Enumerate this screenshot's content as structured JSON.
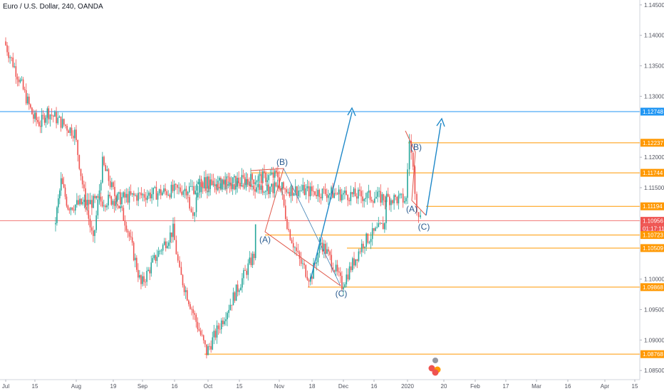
{
  "symbol": {
    "title": "Euro / U.S. Dollar, 240, OANDA"
  },
  "chart_data": {
    "type": "line",
    "subtype": "candlestick-with-drawings",
    "ylim": [
      1.0835,
      1.1458
    ],
    "y_scale": "linear",
    "grid": false,
    "legend": "none",
    "x_ticks": [
      "Jul",
      "15",
      "Aug",
      "19",
      "Sep",
      "16",
      "Oct",
      "15",
      "Nov",
      "18",
      "Dec",
      "16",
      "2020",
      "20",
      "Feb",
      "17",
      "Mar",
      "16",
      "Apr",
      "15"
    ],
    "y_ticks": [
      {
        "label": "1.14500",
        "value": 1.145
      },
      {
        "label": "1.14000",
        "value": 1.14
      },
      {
        "label": "1.13500",
        "value": 1.135
      },
      {
        "label": "1.13000",
        "value": 1.13
      },
      {
        "label": "1.12000",
        "value": 1.12
      },
      {
        "label": "1.11500",
        "value": 1.115
      },
      {
        "label": "1.10000",
        "value": 1.1
      },
      {
        "label": "1.09500",
        "value": 1.095
      },
      {
        "label": "1.09000",
        "value": 1.09
      },
      {
        "label": "1.08500",
        "value": 1.085
      }
    ],
    "price_path": [
      [
        "Jul",
        1.139
      ],
      [
        "Jul",
        1.133
      ],
      [
        "15",
        1.1265
      ],
      [
        "15",
        1.1255
      ],
      [
        "15",
        1.1275
      ],
      [
        "Aug",
        1.124
      ],
      [
        "Aug",
        1.114
      ],
      [
        "Aug",
        1.106
      ],
      [
        "Aug",
        1.119
      ],
      [
        "19",
        1.115
      ],
      [
        "19",
        1.109
      ],
      [
        "Sep",
        1.099
      ],
      [
        "Sep",
        1.104
      ],
      [
        "16",
        1.108
      ],
      [
        "16",
        1.101
      ],
      [
        "Oct",
        1.088
      ],
      [
        "Oct",
        1.096
      ],
      [
        "Oct",
        1.104
      ],
      [
        "15",
        1.108
      ],
      [
        "15",
        1.116
      ],
      [
        "15",
        1.112
      ],
      [
        "Nov",
        1.117
      ],
      [
        "Nov",
        1.108
      ],
      [
        "Nov",
        1.103
      ],
      [
        "18",
        1.1
      ],
      [
        "18",
        1.106
      ],
      [
        "18",
        1.103
      ],
      [
        "Dec",
        1.099
      ],
      [
        "Dec",
        1.106
      ],
      [
        "Dec",
        1.109
      ],
      [
        "16",
        1.114
      ],
      [
        "16",
        1.11
      ],
      [
        "16",
        1.116
      ],
      [
        "2020",
        1.113
      ],
      [
        "2020",
        1.123
      ],
      [
        "2020",
        1.118
      ],
      [
        "2020",
        1.112
      ],
      [
        "2020",
        1.11
      ]
    ],
    "levels": [
      {
        "label": "1.12748",
        "value": 1.12748,
        "color": "#2196f3"
      },
      {
        "label": "1.12237",
        "value": 1.12237,
        "color": "#ff9800"
      },
      {
        "label": "1.11744",
        "value": 1.11744,
        "color": "#ff9800"
      },
      {
        "label": "1.11194",
        "value": 1.11194,
        "color": "#ff9800"
      },
      {
        "label": "1.10956",
        "value": 1.10956,
        "color": "#ef5350"
      },
      {
        "label": "01:17:11",
        "value": 1.10956,
        "color": "#ef5350"
      },
      {
        "label": "1.10723",
        "value": 1.10723,
        "color": "#ff9800"
      },
      {
        "label": "1.10509",
        "value": 1.10509,
        "color": "#ff9800"
      },
      {
        "label": "1.09868",
        "value": 1.09868,
        "color": "#ff9800"
      },
      {
        "label": "1.08768",
        "value": 1.08768,
        "color": "#ff9800"
      }
    ],
    "annotations": [
      {
        "text": "(B)"
      },
      {
        "text": "(A)"
      },
      {
        "text": "(C)"
      },
      {
        "text": "(B)"
      },
      {
        "text": "(A)"
      },
      {
        "text": "(C)"
      }
    ],
    "colors": {
      "up": "#26a69a",
      "down": "#ef5350",
      "level": "#ff9800",
      "blue_level": "#2196f3",
      "current": "#ef5350",
      "wave": "#2a5b8f",
      "arrow": "#1e88c8",
      "triangle": "#e0584a"
    }
  }
}
